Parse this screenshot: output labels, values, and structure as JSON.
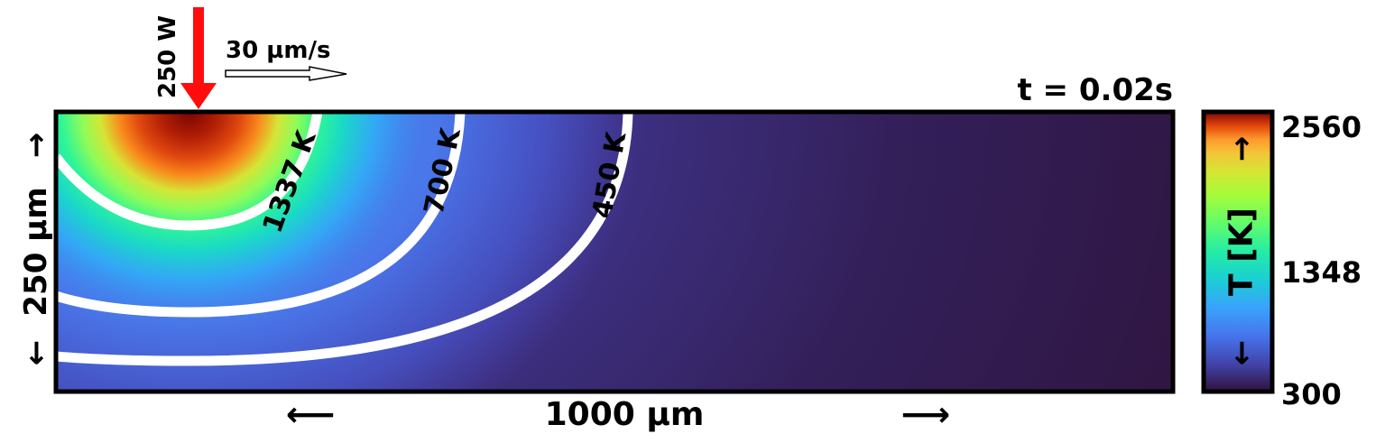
{
  "laser": {
    "power_label": "250 W",
    "color": "#ff0000"
  },
  "scan": {
    "speed_label": "30 µm/s"
  },
  "time_label": "t = 0.02s",
  "domain_labels": {
    "width_label": "1000 µm",
    "height_label": "250 µm",
    "left_arrow": "⟵",
    "right_arrow": "⟶",
    "up_arrow": "→",
    "down_arrow": "←"
  },
  "isotherms": [
    {
      "label": "1337 K",
      "value": 1337
    },
    {
      "label": "700 K",
      "value": 700
    },
    {
      "label": "450 K",
      "value": 450
    }
  ],
  "colorbar": {
    "title": "T [K]",
    "ticks": [
      "2560",
      "1348",
      "300"
    ],
    "min": 300,
    "max": 2560,
    "colormap": "turbo",
    "up_arrow": "→",
    "down_arrow": "←"
  }
}
